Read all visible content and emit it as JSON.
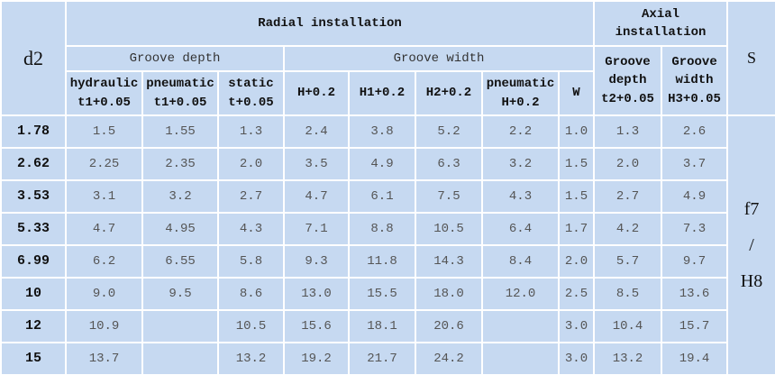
{
  "header": {
    "d2": "d2",
    "radial": "Radial installation",
    "axial": [
      "Axial",
      "installation"
    ],
    "s": "S",
    "groove_depth": "Groove depth",
    "groove_width": "Groove width",
    "sub": [
      [
        "hydraulic",
        "t1+0.05"
      ],
      [
        "pneumatic",
        "t1+0.05"
      ],
      [
        "static",
        "t+0.05"
      ],
      [
        "H+0.2"
      ],
      [
        "H1+0.2"
      ],
      [
        "H2+0.2"
      ],
      [
        "pneumatic",
        "H+0.2"
      ],
      [
        "W"
      ]
    ],
    "axial_sub": [
      [
        "Groove",
        "depth",
        "t2+0.05"
      ],
      [
        "Groove",
        "width",
        "H3+0.05"
      ]
    ]
  },
  "table": {
    "rows": [
      [
        "1.78",
        "1.5",
        "1.55",
        "1.3",
        "2.4",
        "3.8",
        "5.2",
        "2.2",
        "1.0",
        "1.3",
        "2.6"
      ],
      [
        "2.62",
        "2.25",
        "2.35",
        "2.0",
        "3.5",
        "4.9",
        "6.3",
        "3.2",
        "1.5",
        "2.0",
        "3.7"
      ],
      [
        "3.53",
        "3.1",
        "3.2",
        "2.7",
        "4.7",
        "6.1",
        "7.5",
        "4.3",
        "1.5",
        "2.7",
        "4.9"
      ],
      [
        "5.33",
        "4.7",
        "4.95",
        "4.3",
        "7.1",
        "8.8",
        "10.5",
        "6.4",
        "1.7",
        "4.2",
        "7.3"
      ],
      [
        "6.99",
        "6.2",
        "6.55",
        "5.8",
        "9.3",
        "11.8",
        "14.3",
        "8.4",
        "2.0",
        "5.7",
        "9.7"
      ],
      [
        "10",
        "9.0",
        "9.5",
        "8.6",
        "13.0",
        "15.5",
        "18.0",
        "12.0",
        "2.5",
        "8.5",
        "13.6"
      ],
      [
        "12",
        "10.9",
        null,
        "10.5",
        "15.6",
        "18.1",
        "20.6",
        null,
        "3.0",
        "10.4",
        "15.7"
      ],
      [
        "15",
        "13.7",
        null,
        "13.2",
        "19.2",
        "21.7",
        "24.2",
        null,
        "3.0",
        "13.2",
        "19.4"
      ]
    ],
    "s_value": [
      "f7",
      "/",
      "H8"
    ]
  }
}
